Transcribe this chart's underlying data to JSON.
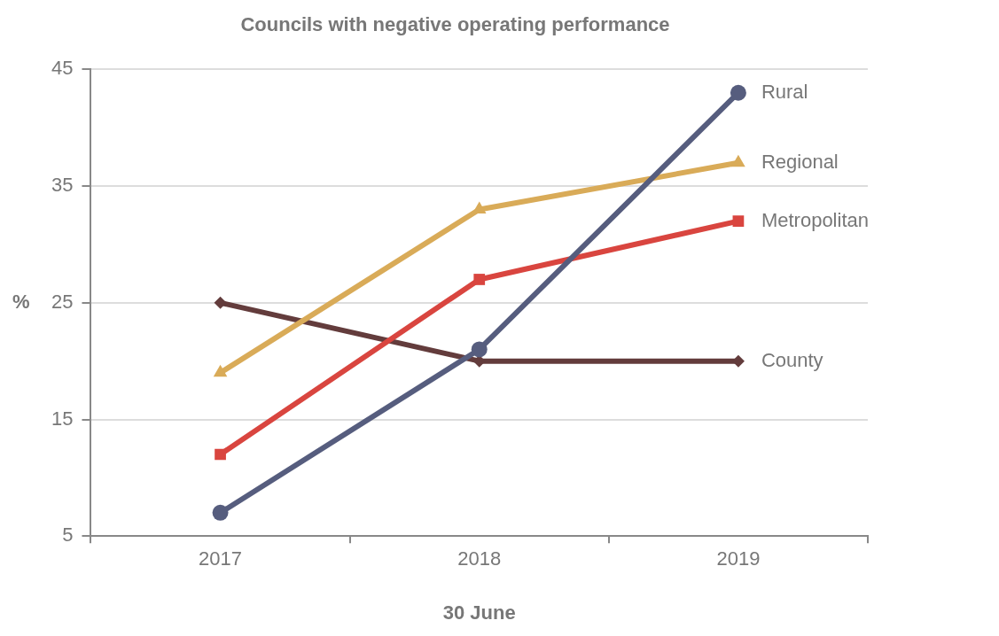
{
  "chart_data": {
    "type": "line",
    "title": "Councils with negative operating performance",
    "xlabel": "30 June",
    "ylabel": "%",
    "categories": [
      "2017",
      "2018",
      "2019"
    ],
    "series": [
      {
        "name": "Rural",
        "color": "#565d7e",
        "marker": "circle",
        "values": [
          7,
          21,
          43
        ]
      },
      {
        "name": "Regional",
        "color": "#d9ab58",
        "marker": "triangle",
        "values": [
          19,
          33,
          37
        ]
      },
      {
        "name": "Metropolitan",
        "color": "#d9453f",
        "marker": "square",
        "values": [
          12,
          27,
          32
        ]
      },
      {
        "name": "County",
        "color": "#633c3c",
        "marker": "diamond",
        "values": [
          25,
          20,
          20
        ]
      }
    ],
    "ylim": [
      5,
      45
    ],
    "yticks": [
      5,
      15,
      25,
      35,
      45
    ],
    "grid": "y",
    "legend": false,
    "line_style": "solid"
  }
}
